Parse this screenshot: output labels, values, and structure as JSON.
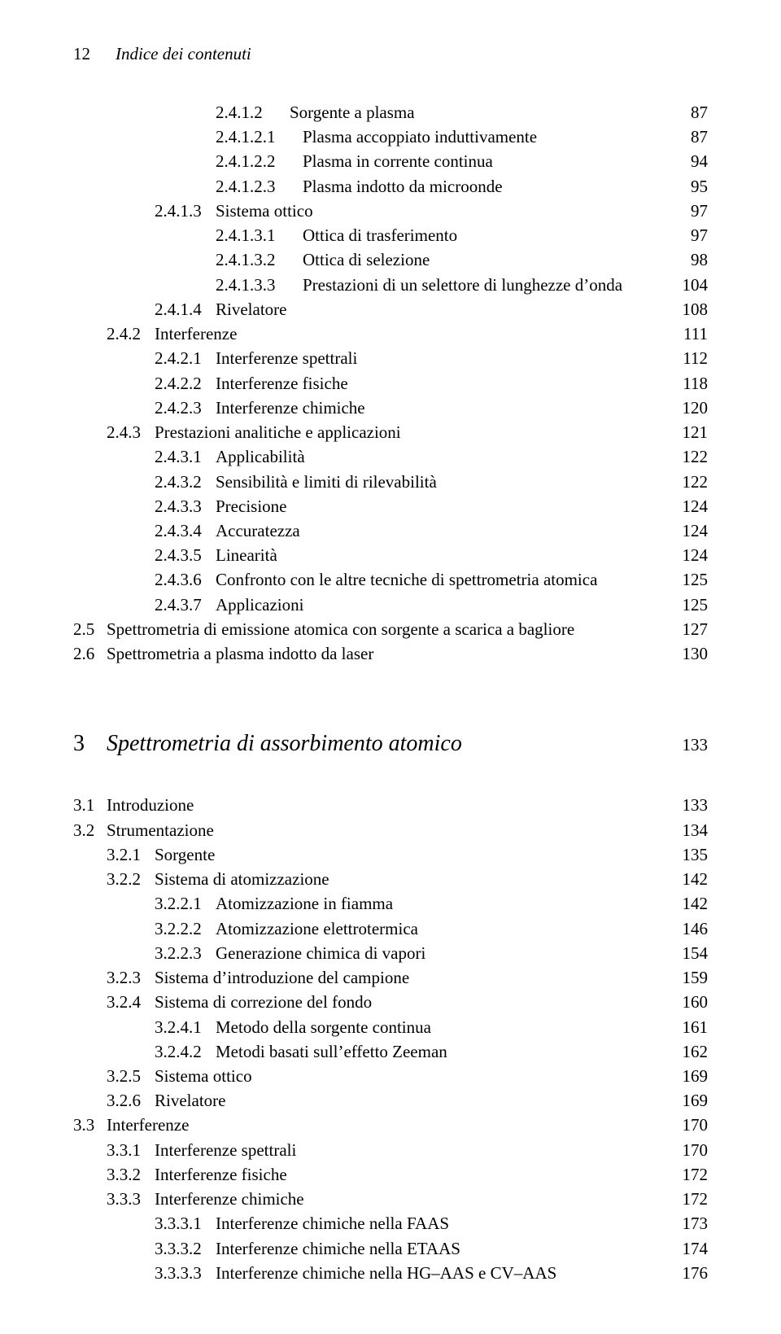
{
  "header": {
    "page_number": "12",
    "running_title": "Indice dei contenuti"
  },
  "toc_block_1": [
    {
      "indent": 3,
      "num": "2.4.1.2",
      "text": "Sorgente a plasma",
      "page": "87"
    },
    {
      "indent": 3,
      "num": "2.4.1.2.1",
      "text": "Plasma accoppiato induttivamente",
      "page": "87",
      "special": "deep"
    },
    {
      "indent": 3,
      "num": "2.4.1.2.2",
      "text": "Plasma in corrente continua",
      "page": "94",
      "special": "deep"
    },
    {
      "indent": 3,
      "num": "2.4.1.2.3",
      "text": "Plasma indotto da microonde",
      "page": "95",
      "special": "deep"
    },
    {
      "indent": 2,
      "num": "2.4.1.3",
      "text": "Sistema ottico",
      "page": "97"
    },
    {
      "indent": 3,
      "num": "2.4.1.3.1",
      "text": "Ottica di trasferimento",
      "page": "97",
      "special": "deep"
    },
    {
      "indent": 3,
      "num": "2.4.1.3.2",
      "text": "Ottica di selezione",
      "page": "98",
      "special": "deep"
    },
    {
      "indent": 3,
      "num": "2.4.1.3.3",
      "text": "Prestazioni di un selettore di lunghezze d’onda",
      "page": "104",
      "special": "deep"
    },
    {
      "indent": 2,
      "num": "2.4.1.4",
      "text": "Rivelatore",
      "page": "108"
    },
    {
      "indent": 1,
      "num": "2.4.2",
      "text": "Interferenze",
      "page": "111"
    },
    {
      "indent": 2,
      "num": "2.4.2.1",
      "text": "Interferenze spettrali",
      "page": "112"
    },
    {
      "indent": 2,
      "num": "2.4.2.2",
      "text": "Interferenze fisiche",
      "page": "118"
    },
    {
      "indent": 2,
      "num": "2.4.2.3",
      "text": "Interferenze chimiche",
      "page": "120"
    },
    {
      "indent": 1,
      "num": "2.4.3",
      "text": "Prestazioni analitiche e applicazioni",
      "page": "121"
    },
    {
      "indent": 2,
      "num": "2.4.3.1",
      "text": "Applicabilità",
      "page": "122"
    },
    {
      "indent": 2,
      "num": "2.4.3.2",
      "text": "Sensibilità e limiti di rilevabilità",
      "page": "122"
    },
    {
      "indent": 2,
      "num": "2.4.3.3",
      "text": "Precisione",
      "page": "124"
    },
    {
      "indent": 2,
      "num": "2.4.3.4",
      "text": "Accuratezza",
      "page": "124"
    },
    {
      "indent": 2,
      "num": "2.4.3.5",
      "text": "Linearità",
      "page": "124"
    },
    {
      "indent": 2,
      "num": "2.4.3.6",
      "text": "Confronto con le altre tecniche di spettrometria atomica",
      "page": "125"
    },
    {
      "indent": 2,
      "num": "2.4.3.7",
      "text": "Applicazioni",
      "page": "125"
    },
    {
      "indent": 0,
      "num": "2.5",
      "text": "Spettrometria di emissione atomica con sorgente a scarica a bagliore",
      "page": "127"
    },
    {
      "indent": 0,
      "num": "2.6",
      "text": "Spettrometria a plasma indotto da laser",
      "page": "130"
    }
  ],
  "chapter": {
    "num": "3",
    "title": "Spettrometria di assorbimento atomico",
    "page": "133"
  },
  "toc_block_2": [
    {
      "indent": 0,
      "num": "3.1",
      "text": "Introduzione",
      "page": "133"
    },
    {
      "indent": 0,
      "num": "3.2",
      "text": "Strumentazione",
      "page": "134"
    },
    {
      "indent": 1,
      "num": "3.2.1",
      "text": "Sorgente",
      "page": "135"
    },
    {
      "indent": 1,
      "num": "3.2.2",
      "text": "Sistema di atomizzazione",
      "page": "142"
    },
    {
      "indent": 2,
      "num": "3.2.2.1",
      "text": "Atomizzazione in fiamma",
      "page": "142"
    },
    {
      "indent": 2,
      "num": "3.2.2.2",
      "text": "Atomizzazione elettrotermica",
      "page": "146"
    },
    {
      "indent": 2,
      "num": "3.2.2.3",
      "text": "Generazione chimica di vapori",
      "page": "154"
    },
    {
      "indent": 1,
      "num": "3.2.3",
      "text": "Sistema d’introduzione del campione",
      "page": "159"
    },
    {
      "indent": 1,
      "num": "3.2.4",
      "text": "Sistema di correzione del fondo",
      "page": "160"
    },
    {
      "indent": 2,
      "num": "3.2.4.1",
      "text": "Metodo della sorgente continua",
      "page": "161"
    },
    {
      "indent": 2,
      "num": "3.2.4.2",
      "text": "Metodi basati sull’effetto Zeeman",
      "page": "162"
    },
    {
      "indent": 1,
      "num": "3.2.5",
      "text": "Sistema ottico",
      "page": "169"
    },
    {
      "indent": 1,
      "num": "3.2.6",
      "text": "Rivelatore",
      "page": "169"
    },
    {
      "indent": 0,
      "num": "3.3",
      "text": "Interferenze",
      "page": "170"
    },
    {
      "indent": 1,
      "num": "3.3.1",
      "text": "Interferenze spettrali",
      "page": "170"
    },
    {
      "indent": 1,
      "num": "3.3.2",
      "text": "Interferenze fisiche",
      "page": "172"
    },
    {
      "indent": 1,
      "num": "3.3.3",
      "text": "Interferenze chimiche",
      "page": "172"
    },
    {
      "indent": 2,
      "num": "3.3.3.1",
      "text": "Interferenze chimiche nella FAAS",
      "page": "173"
    },
    {
      "indent": 2,
      "num": "3.3.3.2",
      "text": "Interferenze chimiche nella ETAAS",
      "page": "174"
    },
    {
      "indent": 2,
      "num": "3.3.3.3",
      "text": "Interferenze chimiche nella HG–AAS e CV–AAS",
      "page": "176"
    }
  ]
}
